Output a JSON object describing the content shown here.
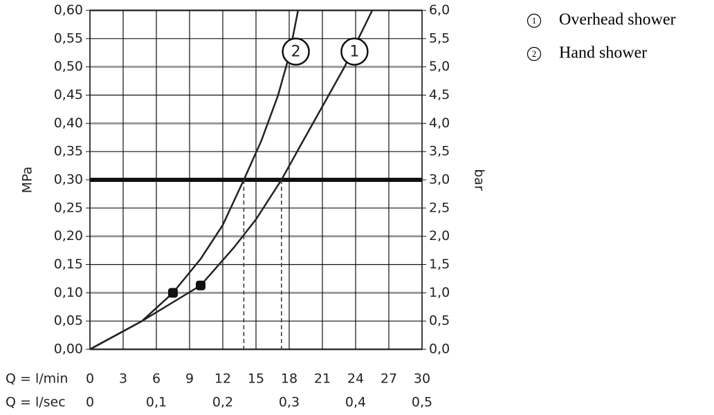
{
  "chart_data": {
    "type": "line",
    "y_label": "MPa",
    "y2_label": "bar",
    "x_label": "Q = l/min",
    "x2_label": "Q = l/sec",
    "xlim": [
      0,
      30
    ],
    "xticks": [
      0,
      3,
      6,
      9,
      12,
      15,
      18,
      21,
      24,
      27,
      30
    ],
    "x2lim": [
      0,
      0.5
    ],
    "x2ticks": [
      0,
      {
        "value": 0.1,
        "label": "0,1"
      },
      {
        "value": 0.2,
        "label": "0,2"
      },
      {
        "value": 0.3,
        "label": "0,3"
      },
      {
        "value": 0.4,
        "label": "0,4"
      },
      {
        "value": 0.5,
        "label": "0,5"
      }
    ],
    "ylim": [
      0,
      0.6
    ],
    "yticks": [
      {
        "value": 0,
        "label": "0,00"
      },
      {
        "value": 0.05,
        "label": "0,05"
      },
      {
        "value": 0.1,
        "label": "0,10"
      },
      {
        "value": 0.15,
        "label": "0,15"
      },
      {
        "value": 0.2,
        "label": "0,20"
      },
      {
        "value": 0.25,
        "label": "0,25"
      },
      {
        "value": 0.3,
        "label": "0,30"
      },
      {
        "value": 0.35,
        "label": "0,35"
      },
      {
        "value": 0.4,
        "label": "0,40"
      },
      {
        "value": 0.45,
        "label": "0,45"
      },
      {
        "value": 0.5,
        "label": "0,50"
      },
      {
        "value": 0.55,
        "label": "0,55"
      },
      {
        "value": 0.6,
        "label": "0,60"
      }
    ],
    "y2lim": [
      0,
      6
    ],
    "y2ticks": [
      {
        "value": 0,
        "label": "0,0"
      },
      {
        "value": 0.5,
        "label": "0,5"
      },
      {
        "value": 1,
        "label": "1,0"
      },
      {
        "value": 1.5,
        "label": "1,5"
      },
      {
        "value": 2,
        "label": "2,0"
      },
      {
        "value": 2.5,
        "label": "2,5"
      },
      {
        "value": 3,
        "label": "3,0"
      },
      {
        "value": 3.5,
        "label": "3,5"
      },
      {
        "value": 4,
        "label": "4,0"
      },
      {
        "value": 4.5,
        "label": "4,5"
      },
      {
        "value": 5,
        "label": "5,0"
      },
      {
        "value": 5.5,
        "label": "5,5"
      },
      {
        "value": 6,
        "label": "6,0"
      }
    ],
    "grid": true,
    "reference_y": 0.3,
    "series": [
      {
        "name": "Overhead shower",
        "marker_label": "1",
        "color": "#222",
        "x": [
          0,
          4.7,
          10,
          13,
          15,
          17.3,
          19,
          21,
          23,
          24,
          25.5
        ],
        "values": [
          0,
          0.05,
          0.113,
          0.18,
          0.23,
          0.3,
          0.36,
          0.43,
          0.5,
          0.54,
          0.6
        ],
        "point": {
          "x": 10,
          "y": 0.113
        },
        "reference_x": 17.3,
        "label_at": {
          "x": 23.9,
          "y": 0.527
        }
      },
      {
        "name": "Hand shower",
        "marker_label": "2",
        "color": "#222",
        "x": [
          0,
          4.7,
          7.5,
          10,
          12,
          13.9,
          15.5,
          17,
          18,
          18.8
        ],
        "values": [
          0,
          0.05,
          0.1,
          0.16,
          0.22,
          0.3,
          0.37,
          0.45,
          0.52,
          0.6
        ],
        "point": {
          "x": 7.5,
          "y": 0.1
        },
        "reference_x": 13.9,
        "label_at": {
          "x": 18.6,
          "y": 0.527
        }
      }
    ]
  }
}
